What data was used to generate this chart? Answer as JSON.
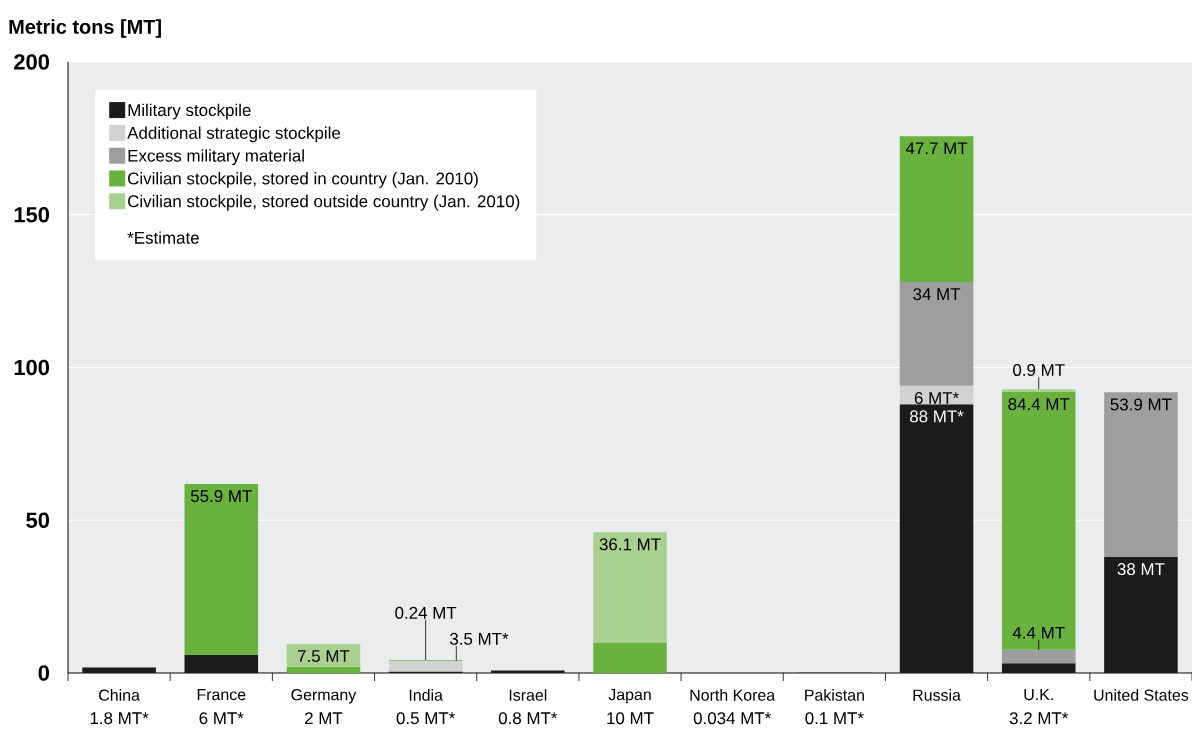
{
  "chart_data": {
    "type": "bar",
    "stacked": true,
    "ylabel": "Metric tons [MT]",
    "categories": [
      "China",
      "France",
      "Germany",
      "India",
      "Israel",
      "Japan",
      "North Korea",
      "Pakistan",
      "Russia",
      "U.K.",
      "United States"
    ],
    "series": [
      {
        "name": "Military stockpile",
        "color": "#1b1a1c",
        "values": [
          1.8,
          6,
          null,
          0.5,
          0.8,
          null,
          0.034,
          0.1,
          88,
          3.2,
          38
        ],
        "value_labels": [
          "1.8 MT*",
          "6 MT*",
          null,
          "0.5 MT*",
          "0.8 MT*",
          null,
          "0.034 MT*",
          "0.1 MT*",
          "88 MT*",
          "3.2 MT*",
          "38 MT"
        ]
      },
      {
        "name": "Additional strategic stockpile",
        "color": "#d1d2d4",
        "values": [
          null,
          null,
          null,
          3.5,
          null,
          null,
          null,
          null,
          6,
          null,
          null
        ],
        "value_labels": [
          null,
          null,
          null,
          "3.5 MT*",
          null,
          null,
          null,
          null,
          "6 MT*",
          null,
          null
        ]
      },
      {
        "name": "Excess military material",
        "color": "#9d9ea0",
        "values": [
          null,
          null,
          null,
          null,
          null,
          null,
          null,
          null,
          34,
          4.4,
          53.9
        ],
        "value_labels": [
          null,
          null,
          null,
          null,
          null,
          null,
          null,
          null,
          "34 MT",
          "4.4 MT",
          "53.9 MT"
        ]
      },
      {
        "name": "Civilian stockpile, stored in country (Jan. 2010)",
        "color": "#6ab23e",
        "values": [
          null,
          55.9,
          2,
          0.24,
          null,
          10,
          null,
          null,
          47.7,
          84.4,
          null
        ],
        "value_labels": [
          null,
          "55.9 MT",
          "2 MT",
          "0.24 MT",
          null,
          "10 MT",
          null,
          null,
          "47.7 MT",
          "84.4 MT",
          null
        ]
      },
      {
        "name": "Civilian stockpile, stored outside country (Jan. 2010)",
        "color": "#a9d08e",
        "values": [
          null,
          null,
          7.5,
          null,
          null,
          36.1,
          null,
          null,
          null,
          0.9,
          null
        ],
        "value_labels": [
          null,
          null,
          "7.5 MT",
          null,
          null,
          "36.1 MT",
          null,
          null,
          null,
          "0.9 MT",
          null
        ]
      }
    ],
    "ylim": [
      0,
      200
    ],
    "yticks": [
      0,
      50,
      100,
      150,
      200
    ],
    "grid": "y",
    "legend": "top left",
    "annotations": [
      "*Estimate"
    ]
  }
}
